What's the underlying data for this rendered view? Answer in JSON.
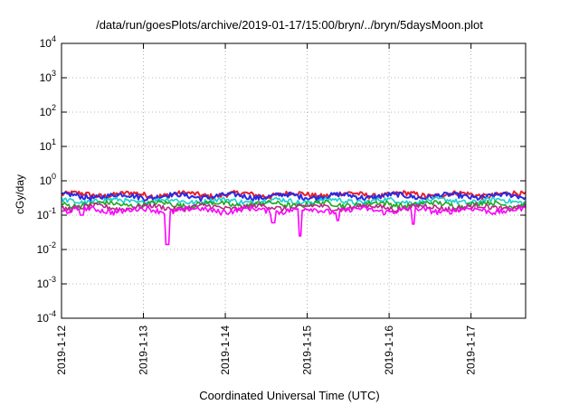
{
  "chart_data": {
    "type": "line",
    "title": "/data/run/goesPlots/archive/2019-01-17/15:00/bryn/../bryn/5daysMoon.plot",
    "xlabel": "Coordinated Universal Time (UTC)",
    "ylabel": "cGy/day",
    "yscale": "log",
    "ylim": [
      0.0001,
      10000
    ],
    "ytick_exponents": [
      -4,
      -3,
      -2,
      -1,
      0,
      1,
      2,
      3,
      4
    ],
    "ytick_base": "10",
    "xlim": [
      "2019-01-12T00:00",
      "2019-01-17T16:00"
    ],
    "xtick_labels": [
      "2019-1-12",
      "2019-1-13",
      "2019-1-14",
      "2019-1-15",
      "2019-1-16",
      "2019-1-17"
    ],
    "grid": true,
    "legend": "none",
    "series": [
      {
        "color": "#e8202a",
        "level": 0.4
      },
      {
        "color": "#2a2ae6",
        "level": 0.36
      },
      {
        "color": "#1ad0d0",
        "level": 0.26
      },
      {
        "color": "#20a820",
        "level": 0.21
      },
      {
        "color": "#b8278a",
        "level": 0.17
      },
      {
        "color": "#ff00ff",
        "level": 0.14,
        "dips": [
          {
            "x": "2019-01-13T07:00",
            "value": 0.014
          },
          {
            "x": "2019-01-14T14:00",
            "value": 0.06
          },
          {
            "x": "2019-01-14T22:00",
            "value": 0.025
          },
          {
            "x": "2019-01-15T09:00",
            "value": 0.07
          },
          {
            "x": "2019-01-16T07:00",
            "value": 0.055
          },
          {
            "x": "2019-01-12T06:00",
            "value": 0.1
          }
        ]
      }
    ]
  }
}
